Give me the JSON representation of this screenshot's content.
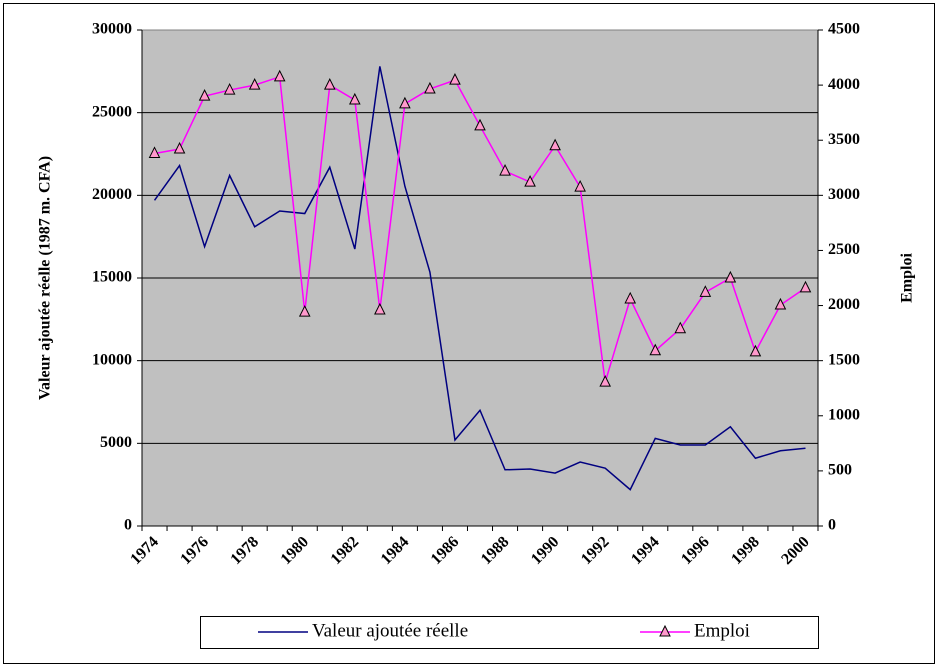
{
  "chart_data": {
    "type": "line",
    "categories": [
      "1974",
      null,
      "1976",
      null,
      "1978",
      null,
      "1980",
      null,
      "1982",
      null,
      "1984",
      null,
      "1986",
      null,
      "1988",
      null,
      "1990",
      null,
      "1992",
      null,
      "1994",
      null,
      "1996",
      null,
      "1998",
      null,
      "2000"
    ],
    "series": [
      {
        "name": "Valeur ajoutée réelle",
        "color": "#000080",
        "values": [
          19700,
          21800,
          16900,
          21200,
          18100,
          19050,
          18900,
          21700,
          16750,
          27800,
          20550,
          15350,
          5200,
          7000,
          3400,
          3450,
          3200,
          3870,
          3500,
          2200,
          5300,
          4900,
          4900,
          6000,
          4100,
          4550,
          4700
        ]
      },
      {
        "name": "Emploi",
        "color": "#ff00ff",
        "axis": "y2",
        "marker": "triangle",
        "values": [
          3380,
          3420,
          3900,
          3955,
          4000,
          4075,
          1940,
          4000,
          3865,
          1960,
          3830,
          3965,
          4045,
          3630,
          3220,
          3120,
          3450,
          3075,
          1305,
          2060,
          1590,
          1790,
          2120,
          2250,
          1580,
          2005,
          2160
        ]
      }
    ],
    "ylabel": "Valeur ajoutée réelle (1987 m. CFA)",
    "y2label": "Emploi",
    "ylim": [
      0,
      30000
    ],
    "yticks": [
      0,
      5000,
      10000,
      15000,
      20000,
      25000,
      30000
    ],
    "y2lim": [
      0,
      4500
    ],
    "y2ticks": [
      0,
      500,
      1000,
      1500,
      2000,
      2500,
      3000,
      3500,
      4000,
      4500
    ],
    "grid": true,
    "legend": "bottom"
  }
}
